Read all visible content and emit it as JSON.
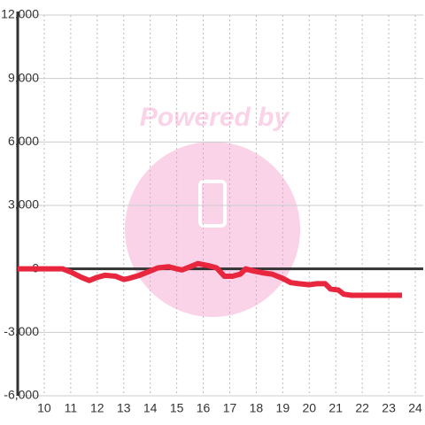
{
  "chart_data": {
    "type": "line",
    "watermark": "Powered by",
    "x": [
      9,
      10.7,
      11,
      11.4,
      11.7,
      12,
      12.3,
      12.7,
      13,
      13.2,
      13.6,
      14,
      14.3,
      14.7,
      15,
      15.2,
      15.5,
      15.8,
      16.2,
      16.5,
      16.8,
      17.1,
      17.4,
      17.6,
      17.9,
      18.3,
      18.6,
      19,
      19.3,
      19.6,
      20,
      20.3,
      20.6,
      20.8,
      21.1,
      21.3,
      21.6,
      22,
      23.5
    ],
    "values": [
      0,
      0,
      -150,
      -400,
      -550,
      -400,
      -300,
      -350,
      -500,
      -450,
      -300,
      -100,
      50,
      100,
      0,
      -50,
      100,
      250,
      150,
      50,
      -350,
      -350,
      -250,
      0,
      -100,
      -200,
      -250,
      -450,
      -650,
      -700,
      -750,
      -700,
      -700,
      -950,
      -1000,
      -1200,
      -1250,
      -1250,
      -1250
    ],
    "color": "#e8263e",
    "xlim": [
      9,
      24.3
    ],
    "xticks": [
      10,
      11,
      12,
      13,
      14,
      15,
      16,
      17,
      18,
      19,
      20,
      21,
      22,
      23,
      24
    ],
    "ylim": [
      -6000,
      12000
    ],
    "yticks": [
      {
        "value": -6000,
        "label": "-6,000"
      },
      {
        "value": -3000,
        "label": "-3,000"
      },
      0,
      {
        "value": 3000,
        "label": "3,000"
      },
      {
        "value": 6000,
        "label": "6,000"
      },
      {
        "value": 9000,
        "label": "9,000"
      },
      {
        "value": 12000,
        "label": "12,000"
      }
    ],
    "grid": true
  }
}
